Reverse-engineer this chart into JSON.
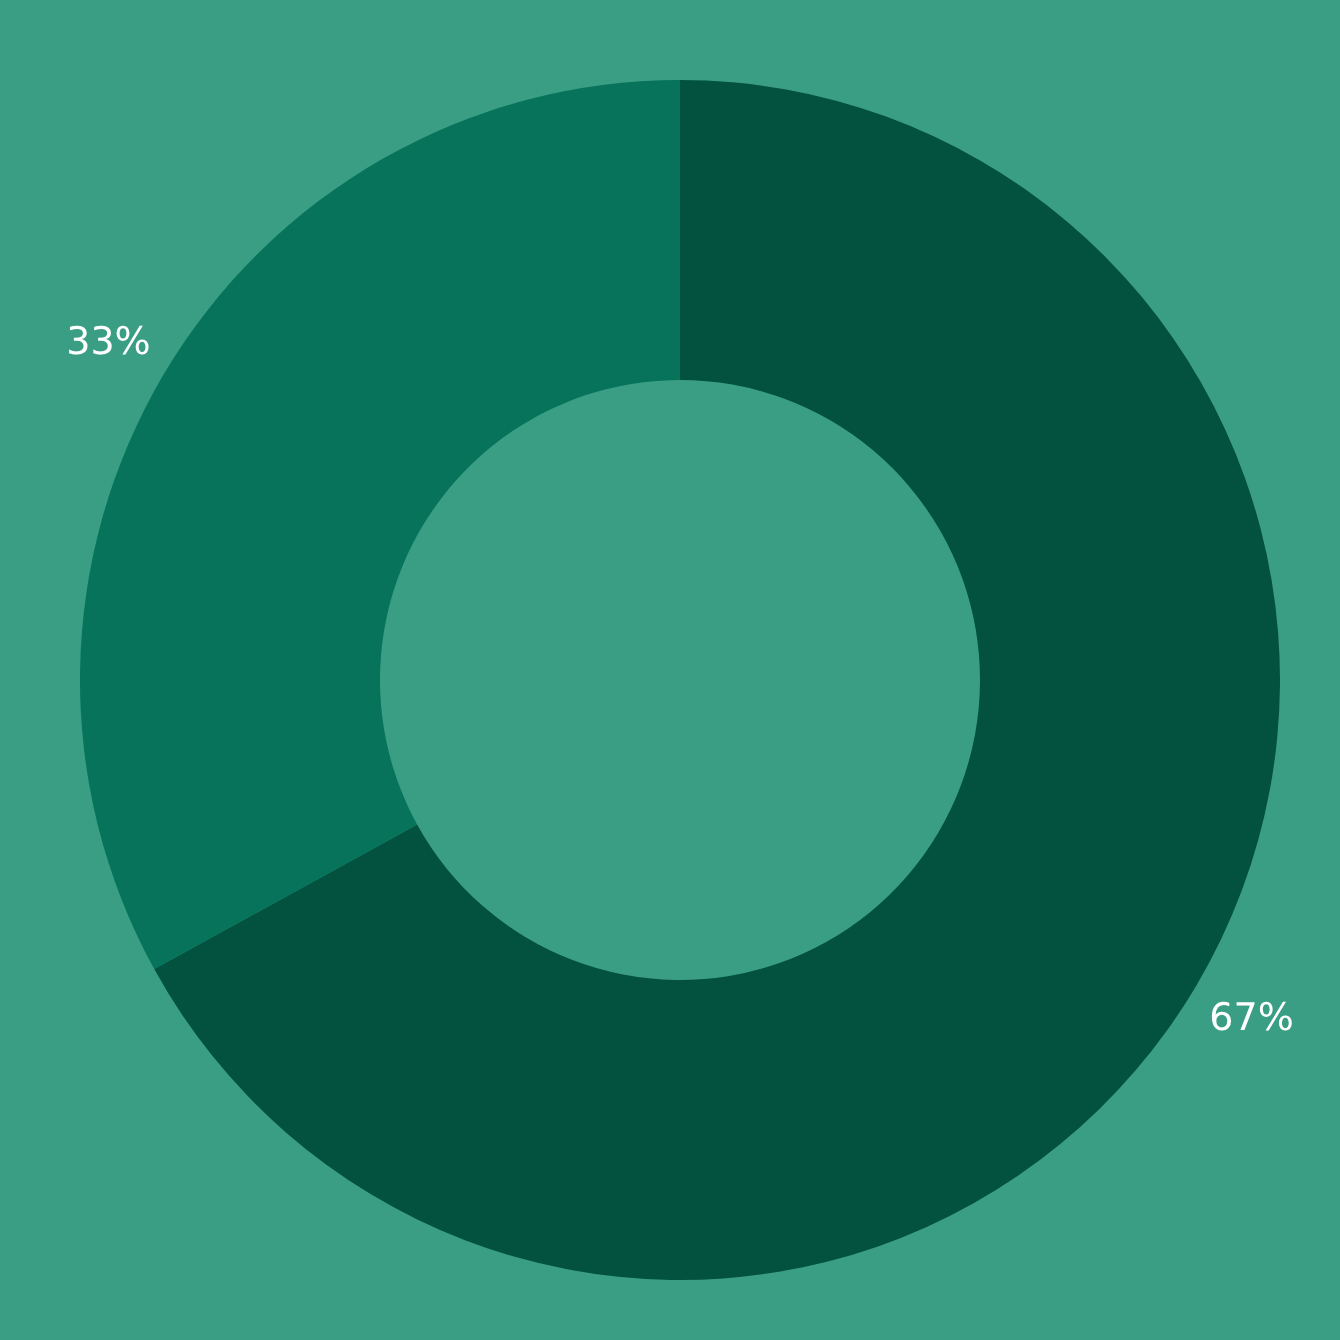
{
  "chart_data": {
    "type": "donut",
    "categories": [
      null,
      null
    ],
    "values": [
      67,
      33
    ],
    "colors": [
      "#02523f",
      "#06735a"
    ],
    "value_labels": [
      "67%",
      "33%"
    ],
    "legend": false
  }
}
